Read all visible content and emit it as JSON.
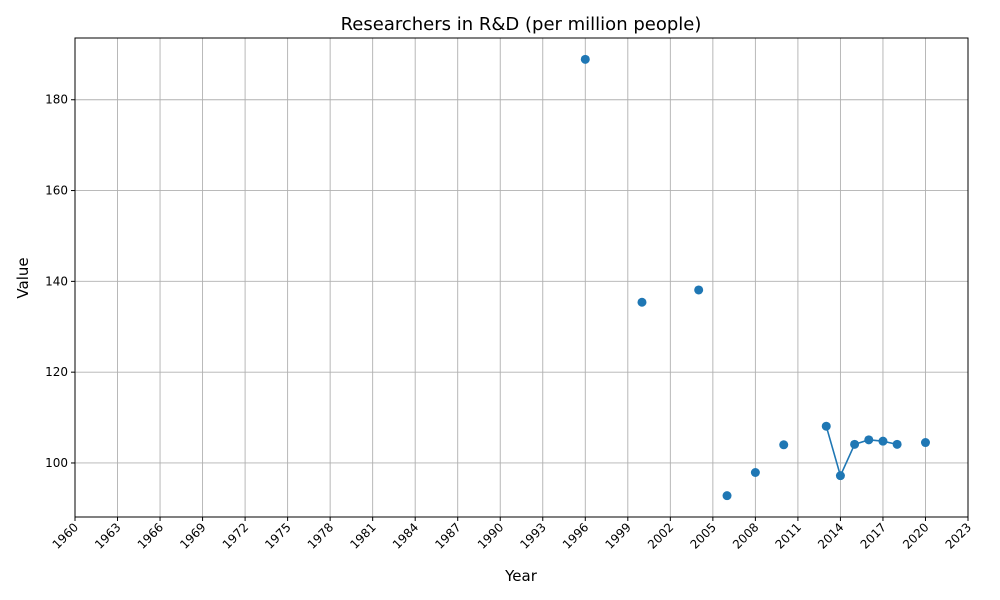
{
  "chart_data": {
    "type": "line",
    "title": "Researchers in R&D (per million people)",
    "xlabel": "Year",
    "ylabel": "Value",
    "xlim": [
      1960,
      2023
    ],
    "ylim": [
      88.1,
      193.6
    ],
    "x_ticks": [
      1960,
      1963,
      1966,
      1969,
      1972,
      1975,
      1978,
      1981,
      1984,
      1987,
      1990,
      1993,
      1996,
      1999,
      2002,
      2005,
      2008,
      2011,
      2014,
      2017,
      2020,
      2023
    ],
    "y_ticks": [
      100,
      120,
      140,
      160,
      180
    ],
    "grid": true,
    "series": [
      {
        "color": "#1f77b4",
        "points": [
          {
            "x": 1996,
            "y": 188.9
          },
          {
            "x": 2000,
            "y": 135.4
          },
          {
            "x": 2004,
            "y": 138.1
          },
          {
            "x": 2006,
            "y": 92.8
          },
          {
            "x": 2008,
            "y": 97.9
          },
          {
            "x": 2010,
            "y": 104.0
          },
          {
            "x": 2013,
            "y": 108.1
          },
          {
            "x": 2014,
            "y": 97.2
          },
          {
            "x": 2015,
            "y": 104.1
          },
          {
            "x": 2016,
            "y": 105.1
          },
          {
            "x": 2017,
            "y": 104.8
          },
          {
            "x": 2018,
            "y": 104.1
          },
          {
            "x": 2020,
            "y": 104.5
          }
        ]
      }
    ]
  }
}
